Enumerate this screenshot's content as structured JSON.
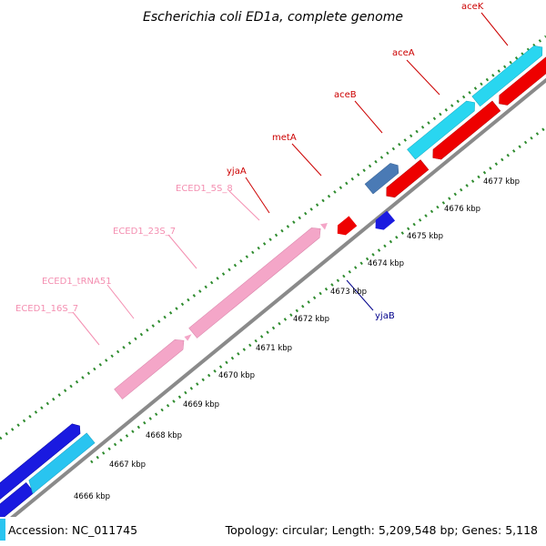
{
  "title": "Escherichia coli ED1a, complete genome",
  "footer": {
    "accession": "Accession: NC_011745",
    "summary": "Topology: circular; Length: 5,209,548 bp; Genes: 5,118"
  },
  "colors": {
    "background": "#ffffff",
    "backbone": "#8a8a8a",
    "tick_marks": "#2e8b2e",
    "label_red": "#cc0000",
    "label_pink": "#f48fb1",
    "label_blue": "#00008b"
  },
  "ticks": [
    "4666 kbp",
    "4667 kbp",
    "4668 kbp",
    "4669 kbp",
    "4670 kbp",
    "4671 kbp",
    "4672 kbp",
    "4673 kbp",
    "4674 kbp",
    "4675 kbp",
    "4676 kbp",
    "4677 kbp"
  ],
  "gene_labels": [
    {
      "text": "aceK",
      "color": "red"
    },
    {
      "text": "aceA",
      "color": "red"
    },
    {
      "text": "aceB",
      "color": "red"
    },
    {
      "text": "metA",
      "color": "red"
    },
    {
      "text": "yjaA",
      "color": "red"
    },
    {
      "text": "ECED1_5S_8",
      "color": "pink"
    },
    {
      "text": "ECED1_23S_7",
      "color": "pink"
    },
    {
      "text": "ECED1_tRNA51",
      "color": "pink"
    },
    {
      "text": "ECED1_16S_7",
      "color": "pink"
    },
    {
      "text": "yjaB",
      "color": "blue"
    }
  ]
}
